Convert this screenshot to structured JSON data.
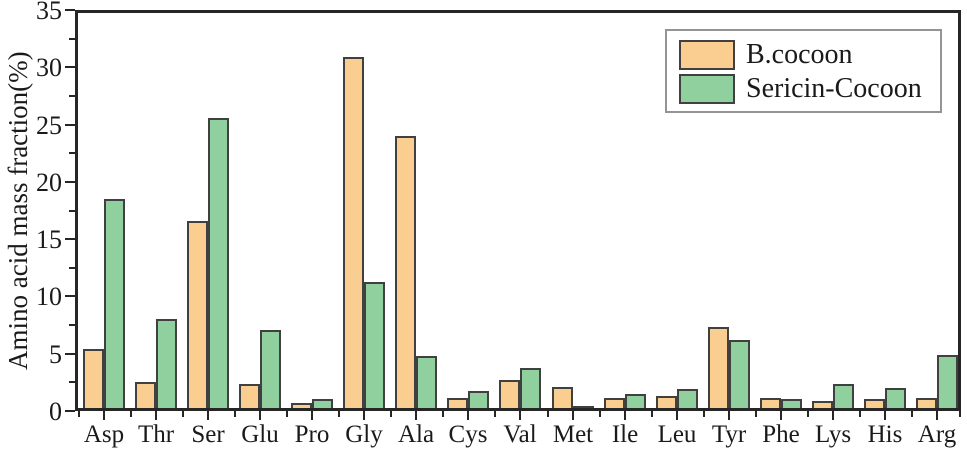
{
  "chart_data": {
    "type": "bar",
    "title": "",
    "xlabel": "",
    "ylabel": "Amino acid mass fraction(%)",
    "ylim": [
      0,
      35
    ],
    "y_major_ticks": [
      0,
      5,
      10,
      15,
      20,
      25,
      30,
      35
    ],
    "y_minor_ticks": [
      2.5,
      7.5,
      12.5,
      17.5,
      22.5,
      27.5,
      32.5
    ],
    "grid": "off",
    "legend_position": "top-right",
    "categories": [
      "Asp",
      "Thr",
      "Ser",
      "Glu",
      "Pro",
      "Gly",
      "Ala",
      "Cys",
      "Val",
      "Met",
      "Ile",
      "Leu",
      "Tyr",
      "Phe",
      "Lys",
      "His",
      "Arg"
    ],
    "series": [
      {
        "name": "B.cocoon",
        "color": "#FACD91",
        "values": [
          5.2,
          2.3,
          16.6,
          2.1,
          0.4,
          31.1,
          24.1,
          0.9,
          2.5,
          1.9,
          0.9,
          1.1,
          7.2,
          0.9,
          0.6,
          0.8,
          0.9
        ]
      },
      {
        "name": "Sericin-Cocoon",
        "color": "#90D09E",
        "values": [
          18.5,
          7.9,
          25.7,
          6.9,
          0.8,
          11.2,
          4.6,
          1.5,
          3.5,
          0.1,
          1.2,
          1.7,
          6.0,
          0.8,
          2.1,
          1.8,
          4.7
        ]
      }
    ],
    "colors": {
      "bar_border": "#404040",
      "axis": "#262626",
      "text": "#1a1a1a",
      "legend_border": "#949494"
    }
  }
}
